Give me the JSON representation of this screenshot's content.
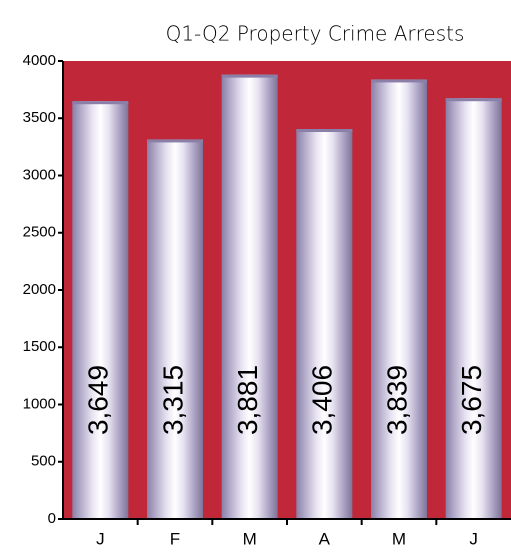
{
  "chart_data": {
    "type": "bar",
    "title": "Q1-Q2 Property Crime Arrests",
    "categories": [
      "J",
      "F",
      "M",
      "A",
      "M",
      "J"
    ],
    "values": [
      3649,
      3315,
      3881,
      3406,
      3839,
      3675
    ],
    "value_labels": [
      "3,649",
      "3,315",
      "3,881",
      "3,406",
      "3,839",
      "3,675"
    ],
    "background": "#c0283a",
    "ylim": [
      0,
      4000
    ],
    "yticks": [
      0,
      500,
      1000,
      1500,
      2000,
      2500,
      3000,
      3500,
      4000
    ]
  }
}
